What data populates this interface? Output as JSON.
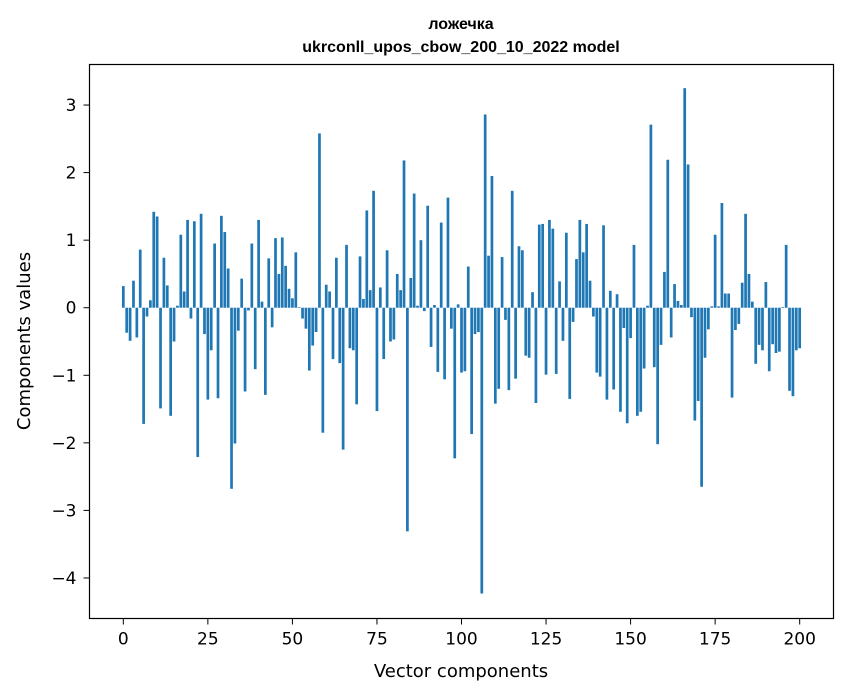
{
  "chart_data": {
    "type": "bar",
    "title": "ложечка",
    "subtitle": "ukrconll_upos_cbow_200_10_2022 model",
    "xlabel": "Vector components",
    "ylabel": "Components values",
    "xlim": [
      -10,
      210
    ],
    "ylim": [
      -4.6,
      3.6
    ],
    "xticks": [
      0,
      25,
      50,
      75,
      100,
      125,
      150,
      175,
      200
    ],
    "xtick_labels": [
      "0",
      "25",
      "50",
      "75",
      "100",
      "125",
      "150",
      "175",
      "200"
    ],
    "yticks": [
      -4,
      -3,
      -2,
      -1,
      0,
      1,
      2,
      3
    ],
    "ytick_labels": [
      "−4",
      "−3",
      "−2",
      "−1",
      "0",
      "1",
      "2",
      "3"
    ],
    "grid": false,
    "bar_color": "#1f77b4",
    "values": [
      0.32,
      -0.37,
      -0.49,
      0.4,
      -0.44,
      0.86,
      -1.72,
      -0.13,
      0.11,
      1.42,
      1.35,
      -1.49,
      0.74,
      0.33,
      -1.6,
      -0.5,
      0.03,
      1.08,
      0.24,
      1.3,
      -0.16,
      1.28,
      -2.21,
      1.39,
      -0.39,
      -1.36,
      -0.63,
      0.95,
      -1.34,
      1.36,
      1.12,
      0.58,
      -2.68,
      -2.01,
      -0.34,
      0.43,
      -1.24,
      -0.04,
      0.95,
      -0.91,
      1.3,
      0.09,
      -1.29,
      0.73,
      -0.29,
      1.03,
      0.5,
      1.04,
      0.62,
      0.28,
      0.14,
      0.82,
      0.01,
      -0.16,
      -0.31,
      -0.93,
      -0.56,
      -0.36,
      2.58,
      -1.85,
      0.34,
      0.24,
      -0.76,
      0.74,
      -0.82,
      -2.1,
      0.93,
      -0.6,
      -0.63,
      -1.43,
      0.76,
      0.13,
      1.44,
      0.26,
      1.73,
      -1.53,
      0.3,
      -0.76,
      0.85,
      -0.5,
      -0.47,
      0.5,
      0.26,
      2.18,
      -3.31,
      0.44,
      1.69,
      0.03,
      1.0,
      -0.05,
      1.51,
      -0.58,
      0.04,
      -0.95,
      1.26,
      -1.06,
      1.63,
      -0.31,
      -2.23,
      0.05,
      -0.96,
      -0.94,
      0.61,
      -1.87,
      -0.39,
      -0.36,
      -4.23,
      2.86,
      0.77,
      1.95,
      -1.42,
      -1.2,
      0.75,
      -0.18,
      -1.22,
      1.73,
      -1.05,
      0.91,
      0.85,
      -0.71,
      -0.74,
      0.23,
      -1.41,
      1.23,
      1.24,
      -0.99,
      1.3,
      1.17,
      -0.98,
      0.39,
      -0.49,
      1.11,
      -1.35,
      -0.21,
      0.72,
      1.3,
      0.82,
      1.24,
      0.4,
      -0.13,
      -0.96,
      -1.02,
      1.22,
      -1.36,
      0.25,
      -1.21,
      0.2,
      -1.54,
      -0.3,
      -1.71,
      -0.45,
      0.93,
      -1.6,
      -1.54,
      -0.9,
      0.03,
      2.71,
      -0.88,
      -2.02,
      -0.55,
      0.53,
      2.19,
      -0.44,
      0.35,
      0.1,
      0.04,
      3.25,
      2.12,
      -0.14,
      -1.67,
      -1.38,
      -2.65,
      -0.74,
      -0.32,
      0.02,
      1.08,
      0.02,
      1.55,
      0.21,
      0.21,
      -1.33,
      -0.33,
      -0.24,
      0.37,
      1.39,
      0.5,
      0.09,
      -0.83,
      -0.55,
      -0.63,
      0.38,
      -0.94,
      -0.54,
      -0.67,
      -0.65,
      0.01,
      0.93,
      -1.23,
      -1.31,
      -0.63,
      -0.6
    ]
  }
}
